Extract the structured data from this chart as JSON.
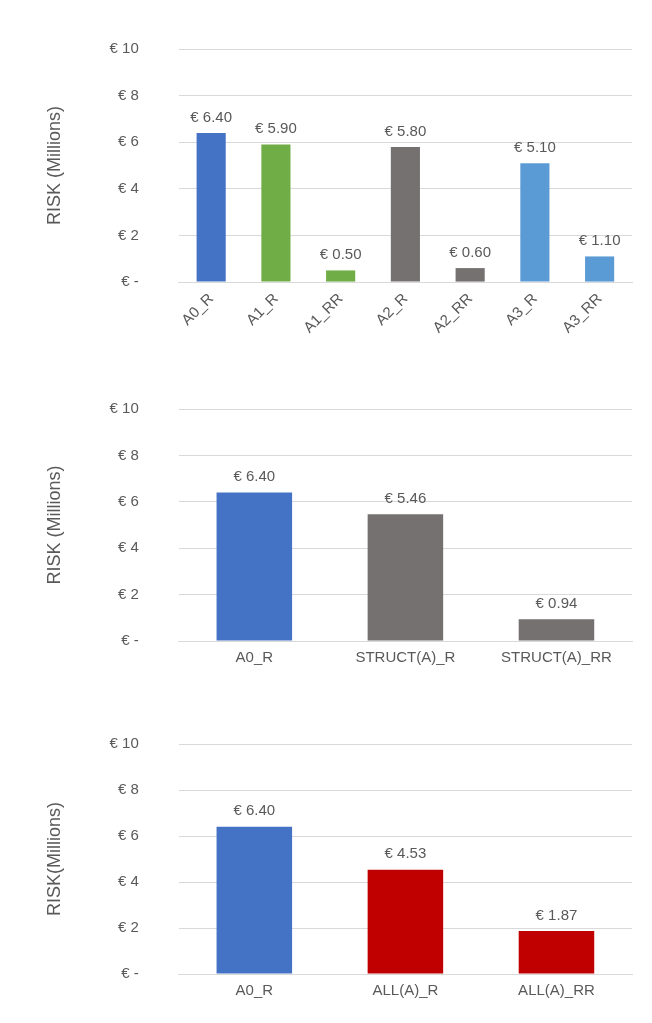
{
  "chart_data": [
    {
      "type": "bar",
      "ylabel": "RISK (Millions)",
      "categories": [
        "A0_R",
        "A1_R",
        "A1_RR",
        "A2_R",
        "A2_RR",
        "A3_R",
        "A3_RR"
      ],
      "values": [
        6.4,
        5.9,
        0.5,
        5.8,
        0.6,
        5.1,
        1.1
      ],
      "colors": [
        "#4472c4",
        "#70ad47",
        "#70ad47",
        "#767171",
        "#767171",
        "#5b9bd5",
        "#5b9bd5"
      ],
      "value_labels": [
        "€ 6.40",
        "€ 5.90",
        "€ 0.50",
        "€ 5.80",
        "€ 0.60",
        "€ 5.10",
        "€ 1.10"
      ],
      "ylim": [
        0,
        10
      ],
      "yticks": [
        {
          "value": 0,
          "label": "€ -"
        },
        {
          "value": 2,
          "label": "€ 2"
        },
        {
          "value": 4,
          "label": "€ 4"
        },
        {
          "value": 6,
          "label": "€ 6"
        },
        {
          "value": 8,
          "label": "€ 8"
        },
        {
          "value": 10,
          "label": "€ 10"
        }
      ],
      "grid": "y"
    },
    {
      "type": "bar",
      "ylabel": "RISK (Millions)",
      "categories": [
        "A0_R",
        "STRUCT(A)_R",
        "STRUCT(A)_RR"
      ],
      "values": [
        6.4,
        5.46,
        0.94
      ],
      "colors": [
        "#4472c4",
        "#767171",
        "#767171"
      ],
      "value_labels": [
        "€ 6.40",
        "€ 5.46",
        "€ 0.94"
      ],
      "ylim": [
        0,
        10
      ],
      "yticks": [
        {
          "value": 0,
          "label": "€ -"
        },
        {
          "value": 2,
          "label": "€ 2"
        },
        {
          "value": 4,
          "label": "€ 4"
        },
        {
          "value": 6,
          "label": "€ 6"
        },
        {
          "value": 8,
          "label": "€ 8"
        },
        {
          "value": 10,
          "label": "€ 10"
        }
      ],
      "grid": "y"
    },
    {
      "type": "bar",
      "ylabel": "RISK(Millions)",
      "categories": [
        "A0_R",
        "ALL(A)_R",
        "ALL(A)_RR"
      ],
      "values": [
        6.4,
        4.53,
        1.87
      ],
      "colors": [
        "#4472c4",
        "#c00000",
        "#c00000"
      ],
      "value_labels": [
        "€ 6.40",
        "€ 4.53",
        "€ 1.87"
      ],
      "ylim": [
        0,
        10
      ],
      "yticks": [
        {
          "value": 0,
          "label": "€ -"
        },
        {
          "value": 2,
          "label": "€ 2"
        },
        {
          "value": 4,
          "label": "€ 4"
        },
        {
          "value": 6,
          "label": "€ 6"
        },
        {
          "value": 8,
          "label": "€ 8"
        },
        {
          "value": 10,
          "label": "€ 10"
        }
      ],
      "grid": "y"
    }
  ]
}
